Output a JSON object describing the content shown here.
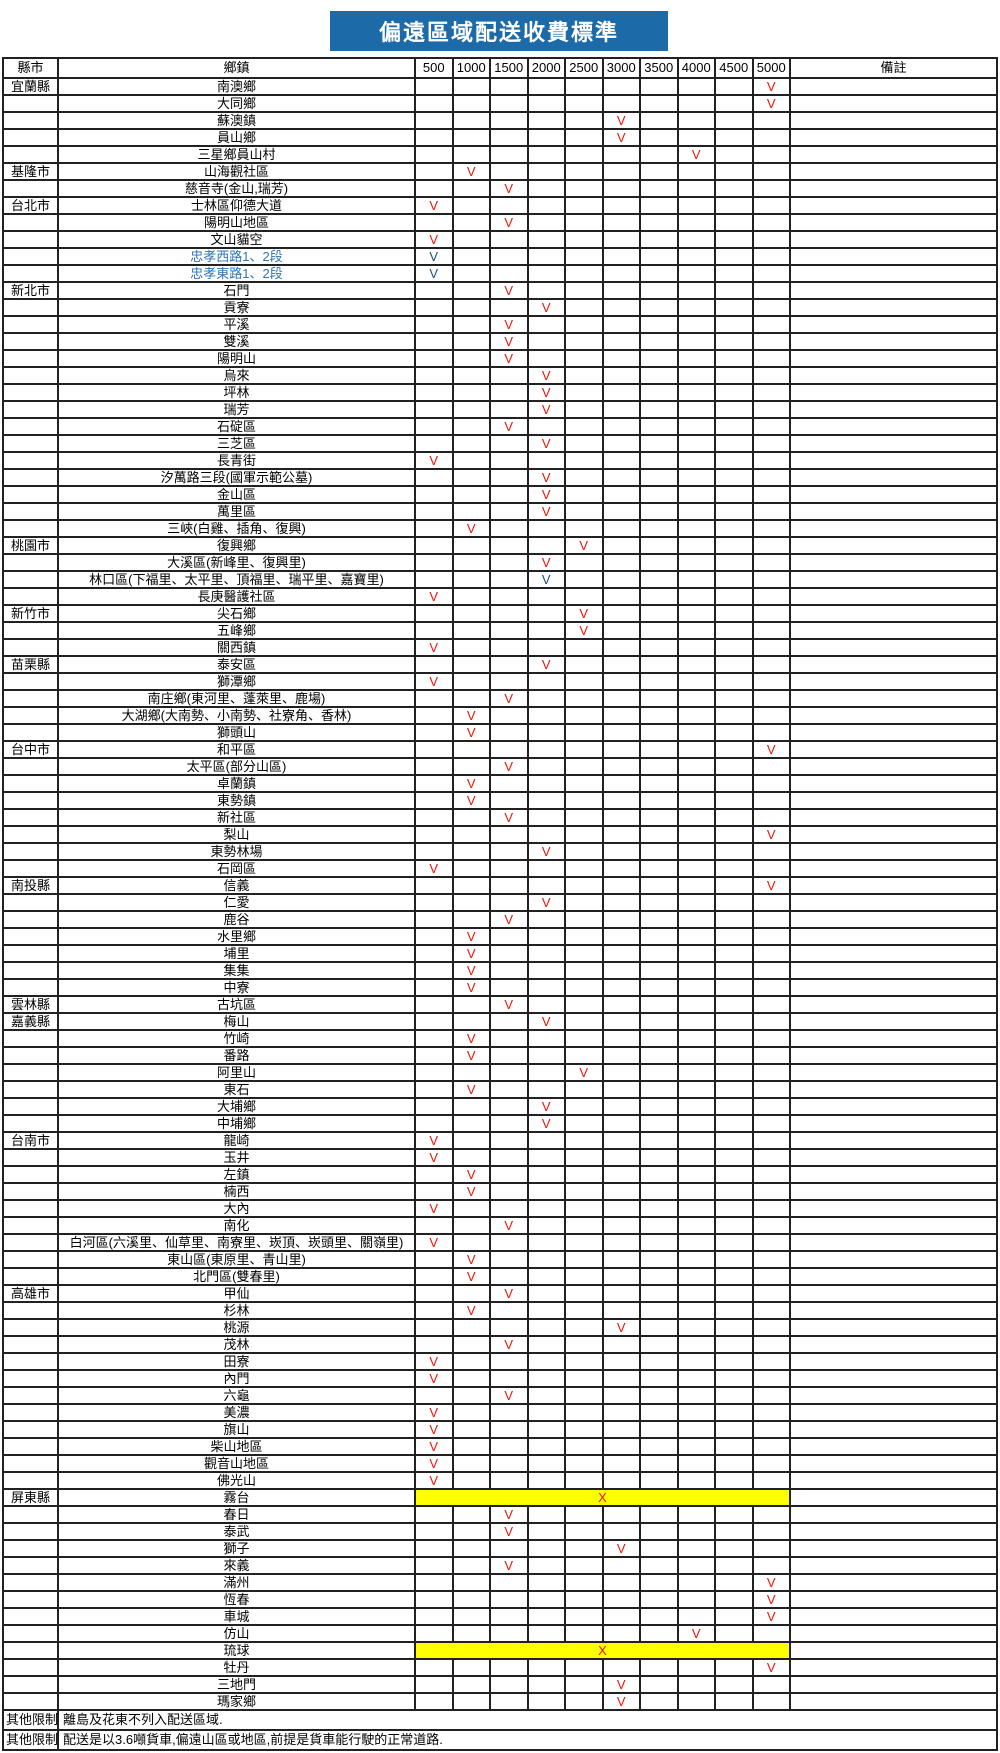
{
  "title": "偏遠區域配送收費標準",
  "colors": {
    "title_bg": "#1C6BA8",
    "title_text": "#FFFFFF",
    "border": "#212121",
    "mark_red": "#F01407",
    "mark_blue": "#1F4E79",
    "township_blue": "#2E74B5",
    "highlight_yellow": "#FFFF00"
  },
  "table": {
    "headers": {
      "county": "縣市",
      "township": "鄉鎮",
      "fees": [
        "500",
        "1000",
        "1500",
        "2000",
        "2500",
        "3000",
        "3500",
        "4000",
        "4500",
        "5000"
      ],
      "note": "備註"
    },
    "rows": [
      {
        "county": "宜蘭縣",
        "township": "南澳鄉",
        "fee": "5000",
        "mark": "V",
        "mark_color": "red"
      },
      {
        "county": "",
        "township": "大同鄉",
        "fee": "5000",
        "mark": "V",
        "mark_color": "red"
      },
      {
        "county": "",
        "township": "蘇澳鎮",
        "fee": "3000",
        "mark": "V",
        "mark_color": "red"
      },
      {
        "county": "",
        "township": "員山鄉",
        "fee": "3000",
        "mark": "V",
        "mark_color": "red"
      },
      {
        "county": "",
        "township": "三星鄉員山村",
        "fee": "4000",
        "mark": "V",
        "mark_color": "red"
      },
      {
        "county": "基隆市",
        "township": "山海觀社區",
        "fee": "1000",
        "mark": "V",
        "mark_color": "red"
      },
      {
        "county": "",
        "township": "慈音寺(金山,瑞芳)",
        "fee": "1500",
        "mark": "V",
        "mark_color": "red"
      },
      {
        "county": "台北市",
        "township": "士林區仰德大道",
        "fee": "500",
        "mark": "V",
        "mark_color": "red"
      },
      {
        "county": "",
        "township": "陽明山地區",
        "fee": "1500",
        "mark": "V",
        "mark_color": "red"
      },
      {
        "county": "",
        "township": "文山貓空",
        "fee": "500",
        "mark": "V",
        "mark_color": "red"
      },
      {
        "county": "",
        "township": "忠孝西路1、2段",
        "fee": "500",
        "mark": "V",
        "mark_color": "blue",
        "township_color": "blue"
      },
      {
        "county": "",
        "township": "忠孝東路1、2段",
        "fee": "500",
        "mark": "V",
        "mark_color": "blue",
        "township_color": "blue"
      },
      {
        "county": "新北市",
        "township": "石門",
        "fee": "1500",
        "mark": "V",
        "mark_color": "red"
      },
      {
        "county": "",
        "township": "貢寮",
        "fee": "2000",
        "mark": "V",
        "mark_color": "red"
      },
      {
        "county": "",
        "township": "平溪",
        "fee": "1500",
        "mark": "V",
        "mark_color": "red"
      },
      {
        "county": "",
        "township": "雙溪",
        "fee": "1500",
        "mark": "V",
        "mark_color": "red"
      },
      {
        "county": "",
        "township": "陽明山",
        "fee": "1500",
        "mark": "V",
        "mark_color": "red"
      },
      {
        "county": "",
        "township": "烏來",
        "fee": "2000",
        "mark": "V",
        "mark_color": "red"
      },
      {
        "county": "",
        "township": "坪林",
        "fee": "2000",
        "mark": "V",
        "mark_color": "red"
      },
      {
        "county": "",
        "township": "瑞芳",
        "fee": "2000",
        "mark": "V",
        "mark_color": "red"
      },
      {
        "county": "",
        "township": "石碇區",
        "fee": "1500",
        "mark": "V",
        "mark_color": "red"
      },
      {
        "county": "",
        "township": "三芝區",
        "fee": "2000",
        "mark": "V",
        "mark_color": "red"
      },
      {
        "county": "",
        "township": "長青街",
        "fee": "500",
        "mark": "V",
        "mark_color": "red"
      },
      {
        "county": "",
        "township": "汐萬路三段(國軍示範公墓)",
        "fee": "2000",
        "mark": "V",
        "mark_color": "red"
      },
      {
        "county": "",
        "township": "金山區",
        "fee": "2000",
        "mark": "V",
        "mark_color": "red"
      },
      {
        "county": "",
        "township": "萬里區",
        "fee": "2000",
        "mark": "V",
        "mark_color": "red"
      },
      {
        "county": "",
        "township": "三峽(白雞、插角、復興)",
        "fee": "1000",
        "mark": "V",
        "mark_color": "red"
      },
      {
        "county": "桃園市",
        "township": "復興鄉",
        "fee": "2500",
        "mark": "V",
        "mark_color": "red"
      },
      {
        "county": "",
        "township": "大溪區(新峰里、復興里)",
        "fee": "2000",
        "mark": "V",
        "mark_color": "red"
      },
      {
        "county": "",
        "township": "林口區(下福里、太平里、頂福里、瑞平里、嘉寶里)",
        "fee": "2000",
        "mark": "V",
        "mark_color": "blue"
      },
      {
        "county": "",
        "township": "長庚醫護社區",
        "fee": "500",
        "mark": "V",
        "mark_color": "red"
      },
      {
        "county": "新竹市",
        "township": "尖石鄉",
        "fee": "2500",
        "mark": "V",
        "mark_color": "red"
      },
      {
        "county": "",
        "township": "五峰鄉",
        "fee": "2500",
        "mark": "V",
        "mark_color": "red"
      },
      {
        "county": "",
        "township": "關西鎮",
        "fee": "500",
        "mark": "V",
        "mark_color": "red"
      },
      {
        "county": "苗栗縣",
        "township": "泰安區",
        "fee": "2000",
        "mark": "V",
        "mark_color": "red"
      },
      {
        "county": "",
        "township": "獅潭鄉",
        "fee": "500",
        "mark": "V",
        "mark_color": "red"
      },
      {
        "county": "",
        "township": "南庄鄉(東河里、蓬萊里、鹿場)",
        "fee": "1500",
        "mark": "V",
        "mark_color": "red"
      },
      {
        "county": "",
        "township": "大湖鄉(大南勢、小南勢、社寮角、香林)",
        "fee": "1000",
        "mark": "V",
        "mark_color": "red"
      },
      {
        "county": "",
        "township": "獅頭山",
        "fee": "1000",
        "mark": "V",
        "mark_color": "red"
      },
      {
        "county": "台中市",
        "township": "和平區",
        "fee": "5000",
        "mark": "V",
        "mark_color": "red"
      },
      {
        "county": "",
        "township": "太平區(部分山區)",
        "fee": "1500",
        "mark": "V",
        "mark_color": "red"
      },
      {
        "county": "",
        "township": "卓蘭鎮",
        "fee": "1000",
        "mark": "V",
        "mark_color": "red"
      },
      {
        "county": "",
        "township": "東勢鎮",
        "fee": "1000",
        "mark": "V",
        "mark_color": "red"
      },
      {
        "county": "",
        "township": "新社區",
        "fee": "1500",
        "mark": "V",
        "mark_color": "red"
      },
      {
        "county": "",
        "township": "梨山",
        "fee": "5000",
        "mark": "V",
        "mark_color": "red"
      },
      {
        "county": "",
        "township": "東勢林場",
        "fee": "2000",
        "mark": "V",
        "mark_color": "red"
      },
      {
        "county": "",
        "township": "石岡區",
        "fee": "500",
        "mark": "V",
        "mark_color": "red"
      },
      {
        "county": "南投縣",
        "township": "信義",
        "fee": "5000",
        "mark": "V",
        "mark_color": "red"
      },
      {
        "county": "",
        "township": "仁愛",
        "fee": "2000",
        "mark": "V",
        "mark_color": "red"
      },
      {
        "county": "",
        "township": "鹿谷",
        "fee": "1500",
        "mark": "V",
        "mark_color": "red"
      },
      {
        "county": "",
        "township": "水里鄉",
        "fee": "1000",
        "mark": "V",
        "mark_color": "red"
      },
      {
        "county": "",
        "township": "埔里",
        "fee": "1000",
        "mark": "V",
        "mark_color": "red"
      },
      {
        "county": "",
        "township": "集集",
        "fee": "1000",
        "mark": "V",
        "mark_color": "red"
      },
      {
        "county": "",
        "township": "中寮",
        "fee": "1000",
        "mark": "V",
        "mark_color": "red"
      },
      {
        "county": "雲林縣",
        "township": "古坑區",
        "fee": "1500",
        "mark": "V",
        "mark_color": "red"
      },
      {
        "county": "嘉義縣",
        "township": "梅山",
        "fee": "2000",
        "mark": "V",
        "mark_color": "red"
      },
      {
        "county": "",
        "township": "竹崎",
        "fee": "1000",
        "mark": "V",
        "mark_color": "red"
      },
      {
        "county": "",
        "township": "番路",
        "fee": "1000",
        "mark": "V",
        "mark_color": "red"
      },
      {
        "county": "",
        "township": "阿里山",
        "fee": "2500",
        "mark": "V",
        "mark_color": "red"
      },
      {
        "county": "",
        "township": "東石",
        "fee": "1000",
        "mark": "V",
        "mark_color": "red"
      },
      {
        "county": "",
        "township": "大埔鄉",
        "fee": "2000",
        "mark": "V",
        "mark_color": "red"
      },
      {
        "county": "",
        "township": "中埔鄉",
        "fee": "2000",
        "mark": "V",
        "mark_color": "red"
      },
      {
        "county": "台南市",
        "township": "龍崎",
        "fee": "500",
        "mark": "V",
        "mark_color": "red"
      },
      {
        "county": "",
        "township": "玉井",
        "fee": "500",
        "mark": "V",
        "mark_color": "red"
      },
      {
        "county": "",
        "township": "左鎮",
        "fee": "1000",
        "mark": "V",
        "mark_color": "red"
      },
      {
        "county": "",
        "township": "楠西",
        "fee": "1000",
        "mark": "V",
        "mark_color": "red"
      },
      {
        "county": "",
        "township": "大內",
        "fee": "500",
        "mark": "V",
        "mark_color": "red"
      },
      {
        "county": "",
        "township": "南化",
        "fee": "1500",
        "mark": "V",
        "mark_color": "red"
      },
      {
        "county": "",
        "township": "白河區(六溪里、仙草里、南寮里、崁頂、崁頭里、關嶺里)",
        "fee": "500",
        "mark": "V",
        "mark_color": "red"
      },
      {
        "county": "",
        "township": "東山區(東原里、青山里)",
        "fee": "1000",
        "mark": "V",
        "mark_color": "red"
      },
      {
        "county": "",
        "township": "北門區(雙春里)",
        "fee": "1000",
        "mark": "V",
        "mark_color": "red"
      },
      {
        "county": "高雄市",
        "township": "甲仙",
        "fee": "1500",
        "mark": "V",
        "mark_color": "red"
      },
      {
        "county": "",
        "township": "杉林",
        "fee": "1000",
        "mark": "V",
        "mark_color": "red"
      },
      {
        "county": "",
        "township": "桃源",
        "fee": "3000",
        "mark": "V",
        "mark_color": "red"
      },
      {
        "county": "",
        "township": "茂林",
        "fee": "1500",
        "mark": "V",
        "mark_color": "red"
      },
      {
        "county": "",
        "township": "田寮",
        "fee": "500",
        "mark": "V",
        "mark_color": "red"
      },
      {
        "county": "",
        "township": "內門",
        "fee": "500",
        "mark": "V",
        "mark_color": "red"
      },
      {
        "county": "",
        "township": "六龜",
        "fee": "1500",
        "mark": "V",
        "mark_color": "red"
      },
      {
        "county": "",
        "township": "美濃",
        "fee": "500",
        "mark": "V",
        "mark_color": "red"
      },
      {
        "county": "",
        "township": "旗山",
        "fee": "500",
        "mark": "V",
        "mark_color": "red"
      },
      {
        "county": "",
        "township": "柴山地區",
        "fee": "500",
        "mark": "V",
        "mark_color": "red"
      },
      {
        "county": "",
        "township": "觀音山地區",
        "fee": "500",
        "mark": "V",
        "mark_color": "red"
      },
      {
        "county": "",
        "township": "佛光山",
        "fee": "500",
        "mark": "V",
        "mark_color": "red"
      },
      {
        "county": "屏東縣",
        "township": "霧台",
        "fee": "",
        "mark": "X",
        "mark_color": "red",
        "highlight": true
      },
      {
        "county": "",
        "township": "春日",
        "fee": "1500",
        "mark": "V",
        "mark_color": "red"
      },
      {
        "county": "",
        "township": "泰武",
        "fee": "1500",
        "mark": "V",
        "mark_color": "red"
      },
      {
        "county": "",
        "township": "獅子",
        "fee": "3000",
        "mark": "V",
        "mark_color": "red"
      },
      {
        "county": "",
        "township": "來義",
        "fee": "1500",
        "mark": "V",
        "mark_color": "red"
      },
      {
        "county": "",
        "township": "滿州",
        "fee": "5000",
        "mark": "V",
        "mark_color": "red"
      },
      {
        "county": "",
        "township": "恆春",
        "fee": "5000",
        "mark": "V",
        "mark_color": "red"
      },
      {
        "county": "",
        "township": "車城",
        "fee": "5000",
        "mark": "V",
        "mark_color": "red"
      },
      {
        "county": "",
        "township": "仿山",
        "fee": "4000",
        "mark": "V",
        "mark_color": "red"
      },
      {
        "county": "",
        "township": "琉球",
        "fee": "",
        "mark": "X",
        "mark_color": "red",
        "highlight": true
      },
      {
        "county": "",
        "township": "牡丹",
        "fee": "5000",
        "mark": "V",
        "mark_color": "red"
      },
      {
        "county": "",
        "township": "三地門",
        "fee": "3000",
        "mark": "V",
        "mark_color": "red"
      },
      {
        "county": "",
        "township": "瑪家鄉",
        "fee": "3000",
        "mark": "V",
        "mark_color": "red"
      }
    ]
  },
  "footnotes": [
    {
      "label": "其他限制:",
      "text": "離島及花東不列入配送區域."
    },
    {
      "label": "其他限制:",
      "text": "配送是以3.6噸貨車,偏遠山區或地區,前提是貨車能行駛的正常道路."
    }
  ]
}
